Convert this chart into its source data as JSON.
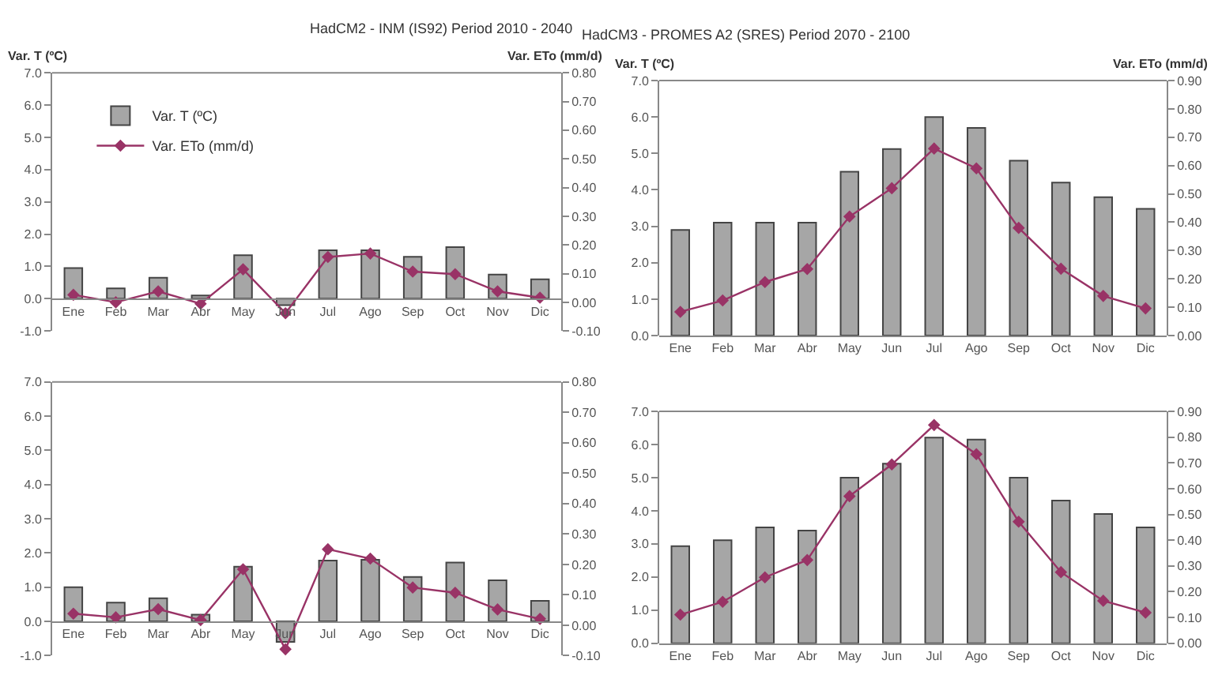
{
  "chart_data": [
    {
      "type": "bar",
      "title": "HadCM2 - INM (IS92) Period 2010 - 2040",
      "ylabel": "Var. T (ºC)",
      "y2label": "Var. ETo (mm/d)",
      "legend": "top left",
      "grid": false,
      "marker": "diamond",
      "categories": [
        "Ene",
        "Feb",
        "Mar",
        "Abr",
        "May",
        "Jun",
        "Jul",
        "Ago",
        "Sep",
        "Oct",
        "Nov",
        "Dic"
      ],
      "ylim": [
        -1,
        7
      ],
      "yticks": [
        {
          "value": -1,
          "label": "-1.0"
        },
        {
          "value": 0,
          "label": "0.0"
        },
        {
          "value": 1,
          "label": "1.0"
        },
        {
          "value": 2,
          "label": "2.0"
        },
        {
          "value": 3,
          "label": "3.0"
        },
        {
          "value": 4,
          "label": "4.0"
        },
        {
          "value": 5,
          "label": "5.0"
        },
        {
          "value": 6,
          "label": "6.0"
        },
        {
          "value": 7,
          "label": "7.0"
        }
      ],
      "y2lim": [
        -0.1,
        0.8
      ],
      "y2ticks": [
        {
          "value": -0.1,
          "label": "-0.10"
        },
        {
          "value": 0,
          "label": "0.00"
        },
        {
          "value": 0.1,
          "label": "0.10"
        },
        {
          "value": 0.2,
          "label": "0.20"
        },
        {
          "value": 0.3,
          "label": "0.30"
        },
        {
          "value": 0.4,
          "label": "0.40"
        },
        {
          "value": 0.5,
          "label": "0.50"
        },
        {
          "value": 0.6,
          "label": "0.60"
        },
        {
          "value": 0.7,
          "label": "0.70"
        },
        {
          "value": 0.8,
          "label": "0.80"
        }
      ],
      "series": [
        {
          "name": "Var. T (ºC)",
          "color": "#a6a6a6",
          "values": [
            0.95,
            0.32,
            0.65,
            0.1,
            1.35,
            -0.2,
            1.5,
            1.5,
            1.3,
            1.6,
            0.75,
            0.6
          ]
        },
        {
          "name": "Var. ETo (mm/d)",
          "type": "line",
          "axis": "y2",
          "color": "#993366",
          "values": [
            0.026,
            0.0,
            0.038,
            -0.005,
            0.115,
            -0.038,
            0.158,
            0.17,
            0.107,
            0.098,
            0.038,
            0.016
          ]
        }
      ]
    },
    {
      "type": "bar",
      "grid": false,
      "marker": "diamond",
      "categories": [
        "Ene",
        "Feb",
        "Mar",
        "Abr",
        "May",
        "Jun",
        "Jul",
        "Ago",
        "Sep",
        "Oct",
        "Nov",
        "Dic"
      ],
      "ylim": [
        -1,
        7
      ],
      "yticks": [
        {
          "value": -1,
          "label": "-1.0"
        },
        {
          "value": 0,
          "label": "0.0"
        },
        {
          "value": 1,
          "label": "1.0"
        },
        {
          "value": 2,
          "label": "2.0"
        },
        {
          "value": 3,
          "label": "3.0"
        },
        {
          "value": 4,
          "label": "4.0"
        },
        {
          "value": 5,
          "label": "5.0"
        },
        {
          "value": 6,
          "label": "6.0"
        },
        {
          "value": 7,
          "label": "7.0"
        }
      ],
      "y2lim": [
        -0.1,
        0.8
      ],
      "y2ticks": [
        {
          "value": -0.1,
          "label": "-0.10"
        },
        {
          "value": 0,
          "label": "0.00"
        },
        {
          "value": 0.1,
          "label": "0.10"
        },
        {
          "value": 0.2,
          "label": "0.20"
        },
        {
          "value": 0.3,
          "label": "0.30"
        },
        {
          "value": 0.4,
          "label": "0.40"
        },
        {
          "value": 0.5,
          "label": "0.50"
        },
        {
          "value": 0.6,
          "label": "0.60"
        },
        {
          "value": 0.7,
          "label": "0.70"
        },
        {
          "value": 0.8,
          "label": "0.80"
        }
      ],
      "series": [
        {
          "color": "#a6a6a6",
          "values": [
            1.0,
            0.55,
            0.68,
            0.2,
            1.6,
            -0.6,
            1.78,
            1.8,
            1.3,
            1.72,
            1.2,
            0.6
          ]
        },
        {
          "type": "line",
          "axis": "y2",
          "color": "#993366",
          "values": [
            0.038,
            0.026,
            0.053,
            0.017,
            0.184,
            -0.079,
            0.25,
            0.219,
            0.124,
            0.107,
            0.052,
            0.021
          ]
        }
      ]
    },
    {
      "type": "bar",
      "title": "HadCM3 - PROMES A2 (SRES) Period 2070 - 2100",
      "ylabel": "Var. T (ºC)",
      "y2label": "Var. ETo (mm/d)",
      "grid": false,
      "marker": "diamond",
      "categories": [
        "Ene",
        "Feb",
        "Mar",
        "Abr",
        "May",
        "Jun",
        "Jul",
        "Ago",
        "Sep",
        "Oct",
        "Nov",
        "Dic"
      ],
      "ylim": [
        0,
        7
      ],
      "yticks": [
        {
          "value": 0,
          "label": "0.0"
        },
        {
          "value": 1,
          "label": "1.0"
        },
        {
          "value": 2,
          "label": "2.0"
        },
        {
          "value": 3,
          "label": "3.0"
        },
        {
          "value": 4,
          "label": "4.0"
        },
        {
          "value": 5,
          "label": "5.0"
        },
        {
          "value": 6,
          "label": "6.0"
        },
        {
          "value": 7,
          "label": "7.0"
        }
      ],
      "y2lim": [
        0,
        0.9
      ],
      "y2ticks": [
        {
          "value": 0,
          "label": "0.00"
        },
        {
          "value": 0.1,
          "label": "0.10"
        },
        {
          "value": 0.2,
          "label": "0.20"
        },
        {
          "value": 0.3,
          "label": "0.30"
        },
        {
          "value": 0.4,
          "label": "0.40"
        },
        {
          "value": 0.5,
          "label": "0.50"
        },
        {
          "value": 0.6,
          "label": "0.60"
        },
        {
          "value": 0.7,
          "label": "0.70"
        },
        {
          "value": 0.8,
          "label": "0.80"
        },
        {
          "value": 0.9,
          "label": "0.90"
        }
      ],
      "series": [
        {
          "color": "#a6a6a6",
          "values": [
            2.9,
            3.1,
            3.1,
            3.1,
            4.5,
            5.12,
            6.0,
            5.7,
            4.8,
            4.2,
            3.8,
            3.48
          ]
        },
        {
          "type": "line",
          "axis": "y2",
          "color": "#993366",
          "values": [
            0.084,
            0.124,
            0.189,
            0.235,
            0.42,
            0.52,
            0.66,
            0.59,
            0.38,
            0.236,
            0.14,
            0.096
          ]
        }
      ]
    },
    {
      "type": "bar",
      "grid": false,
      "marker": "diamond",
      "categories": [
        "Ene",
        "Feb",
        "Mar",
        "Abr",
        "May",
        "Jun",
        "Jul",
        "Ago",
        "Sep",
        "Oct",
        "Nov",
        "Dic"
      ],
      "ylim": [
        0,
        7
      ],
      "yticks": [
        {
          "value": 0,
          "label": "0.0"
        },
        {
          "value": 1,
          "label": "1.0"
        },
        {
          "value": 2,
          "label": "2.0"
        },
        {
          "value": 3,
          "label": "3.0"
        },
        {
          "value": 4,
          "label": "4.0"
        },
        {
          "value": 5,
          "label": "5.0"
        },
        {
          "value": 6,
          "label": "6.0"
        },
        {
          "value": 7,
          "label": "7.0"
        }
      ],
      "y2lim": [
        0,
        0.9
      ],
      "y2ticks": [
        {
          "value": 0,
          "label": "0.00"
        },
        {
          "value": 0.1,
          "label": "0.10"
        },
        {
          "value": 0.2,
          "label": "0.20"
        },
        {
          "value": 0.3,
          "label": "0.30"
        },
        {
          "value": 0.4,
          "label": "0.40"
        },
        {
          "value": 0.5,
          "label": "0.50"
        },
        {
          "value": 0.6,
          "label": "0.60"
        },
        {
          "value": 0.7,
          "label": "0.70"
        },
        {
          "value": 0.8,
          "label": "0.80"
        },
        {
          "value": 0.9,
          "label": "0.90"
        }
      ],
      "series": [
        {
          "color": "#a6a6a6",
          "values": [
            2.93,
            3.11,
            3.5,
            3.4,
            5.0,
            5.42,
            6.21,
            6.15,
            5.0,
            4.31,
            3.9,
            3.5
          ]
        },
        {
          "type": "line",
          "axis": "y2",
          "color": "#993366",
          "values": [
            0.111,
            0.161,
            0.256,
            0.323,
            0.571,
            0.694,
            0.847,
            0.734,
            0.472,
            0.276,
            0.165,
            0.119
          ]
        }
      ]
    }
  ]
}
